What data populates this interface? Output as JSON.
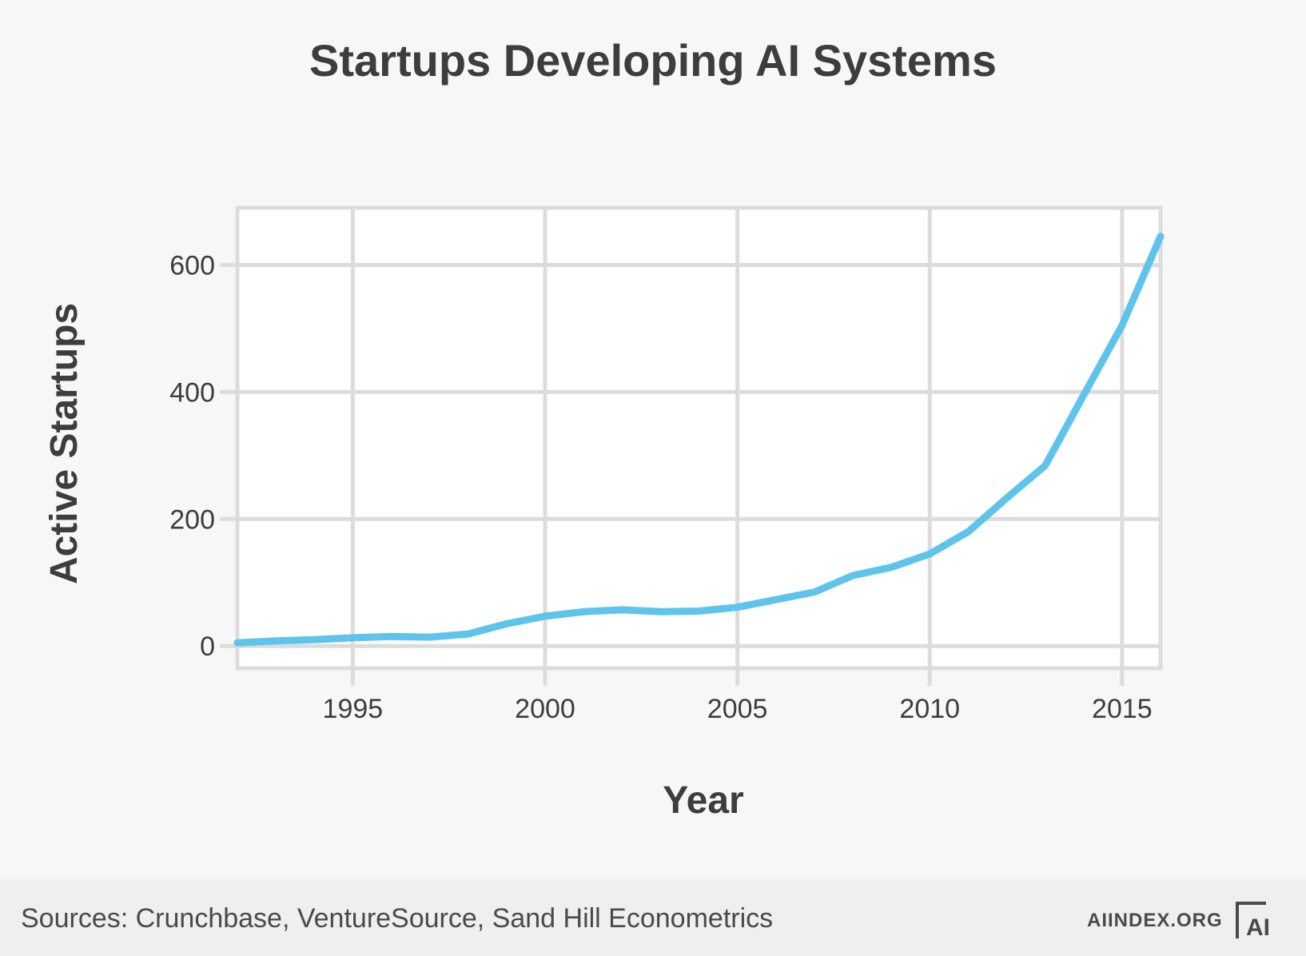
{
  "chart_data": {
    "type": "line",
    "title": "Startups Developing AI Systems",
    "xlabel": "Year",
    "ylabel": "Active Startups",
    "xlim": [
      1992,
      2016
    ],
    "ylim": [
      -35,
      690
    ],
    "xticks": [
      1995,
      2000,
      2005,
      2010,
      2015
    ],
    "yticks": [
      0,
      200,
      400,
      600
    ],
    "grid": true,
    "series": [
      {
        "name": "Active Startups",
        "color": "#5ec4ec",
        "x": [
          1992,
          1993,
          1994,
          1995,
          1996,
          1997,
          1998,
          1999,
          2000,
          2001,
          2002,
          2003,
          2004,
          2005,
          2006,
          2007,
          2008,
          2009,
          2010,
          2011,
          2012,
          2013,
          2014,
          2015,
          2016
        ],
        "y": [
          5,
          8,
          10,
          13,
          15,
          14,
          19,
          35,
          47,
          54,
          57,
          54,
          55,
          61,
          73,
          85,
          111,
          124,
          145,
          180,
          233,
          284,
          395,
          505,
          645
        ]
      }
    ]
  },
  "footer": {
    "sources": "Sources: Crunchbase, VentureSource, Sand Hill Econometrics",
    "site": "AIINDEX.ORG",
    "logo_text": "AI"
  }
}
